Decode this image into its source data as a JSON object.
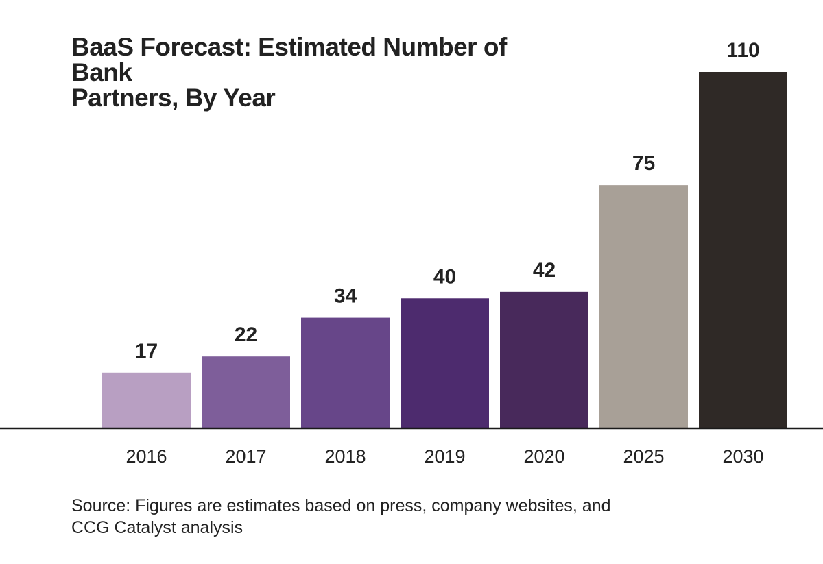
{
  "title_lines": [
    "BaaS Forecast: Estimated Number of Bank",
    "Partners, By Year"
  ],
  "source_lines": [
    "Source: Figures are estimates based on press, company websites, and",
    "CCG Catalyst analysis"
  ],
  "chart_data": {
    "type": "bar",
    "title": "BaaS Forecast: Estimated Number of Bank Partners, By Year",
    "categories": [
      "2016",
      "2017",
      "2018",
      "2019",
      "2020",
      "2025",
      "2030"
    ],
    "values": [
      17,
      22,
      34,
      40,
      42,
      75,
      110
    ],
    "data_labels": [
      "17",
      "22",
      "34",
      "40",
      "42",
      "75",
      "110"
    ],
    "colors": [
      "#b89fc2",
      "#7e5e9a",
      "#674689",
      "#4d2b6e",
      "#48295b",
      "#a8a097",
      "#2f2926"
    ],
    "axis_color": "#1a1a1a",
    "xlabel": "",
    "ylabel": "",
    "ylim": [
      0,
      110
    ],
    "grid": false,
    "legend": "none"
  }
}
